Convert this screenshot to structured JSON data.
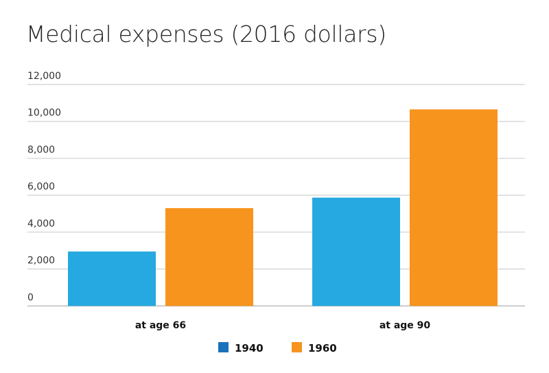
{
  "chart_data": {
    "type": "bar",
    "title": "Medical expenses (2016 dollars)",
    "xlabel": "",
    "ylabel": "",
    "categories": [
      "at age 66",
      "at age 90"
    ],
    "series": [
      {
        "name": "1940",
        "values": [
          2950,
          5870
        ],
        "color": "#26a9e0",
        "legend_color": "#1a72bb"
      },
      {
        "name": "1960",
        "values": [
          5300,
          10650
        ],
        "color": "#f7941d",
        "legend_color": "#f7941d"
      }
    ],
    "ylim": [
      0,
      12000
    ],
    "yticks": [
      0,
      2000,
      4000,
      6000,
      8000,
      10000,
      12000
    ],
    "ytick_labels": [
      "0",
      "2,000",
      "4,000",
      "6,000",
      "8,000",
      "10,000",
      "12,000"
    ],
    "grid": true,
    "legend_position": "bottom-center"
  }
}
